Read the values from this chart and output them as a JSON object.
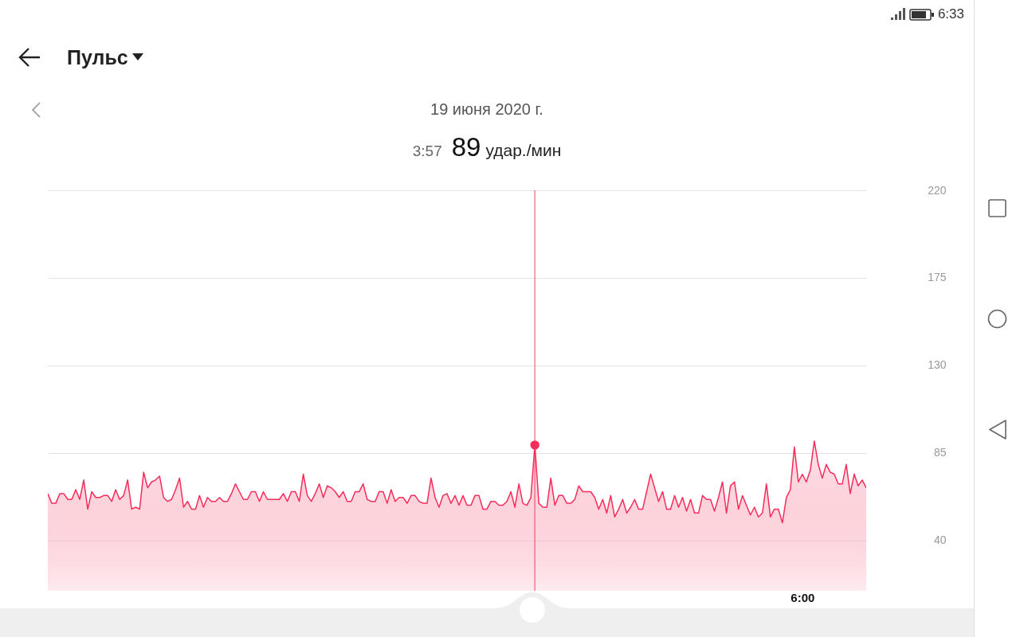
{
  "chart_data": {
    "type": "area",
    "title": "Пульс",
    "subtitle": "19 июня 2020 г.",
    "annotations": [
      "3:57",
      "89",
      "удар./мин",
      "6:33"
    ],
    "categories": [
      null,
      null,
      null,
      null,
      null,
      null,
      null,
      null,
      null,
      null,
      null,
      null,
      null,
      null,
      null,
      null,
      null,
      null,
      null,
      null,
      null,
      null,
      null,
      null,
      null,
      null,
      null,
      null,
      null,
      null,
      null,
      null,
      null,
      null,
      null,
      null,
      null,
      null,
      null,
      null,
      null,
      null,
      null,
      null,
      null,
      null,
      null,
      null,
      null,
      null,
      null,
      null,
      null,
      null,
      null,
      null,
      null,
      null,
      null,
      null,
      null,
      null,
      null,
      null,
      null,
      null,
      null,
      null,
      null,
      null,
      null,
      null,
      null,
      null,
      null,
      null,
      null,
      null,
      null,
      null,
      null,
      null,
      null,
      null,
      null,
      null,
      null,
      null,
      null,
      null,
      null,
      null,
      null,
      null,
      null,
      null,
      null,
      null,
      null,
      null,
      null,
      null,
      null,
      null,
      null,
      null,
      null,
      null,
      null,
      null,
      null,
      null,
      null,
      null,
      null,
      null,
      null,
      null,
      null,
      null,
      null,
      null,
      null,
      null,
      null,
      null,
      null,
      null,
      null,
      null,
      null,
      null,
      null,
      null,
      null,
      null,
      null,
      null,
      null,
      null,
      null,
      null,
      null,
      null,
      null,
      null,
      null,
      null,
      null,
      null,
      null,
      null,
      null,
      null,
      null,
      null,
      null,
      null,
      null,
      null,
      null,
      null,
      null,
      null,
      null,
      null,
      null,
      null,
      null,
      null,
      null,
      null,
      null,
      null,
      null,
      null,
      null,
      null,
      null,
      null,
      null,
      null,
      null,
      null,
      null,
      null,
      null,
      null,
      null,
      "6:00",
      null,
      null,
      null,
      null,
      null,
      null,
      null,
      null,
      null,
      null,
      null,
      null,
      null,
      null,
      null,
      null
    ],
    "ylim": [
      14,
      220
    ],
    "yticks": [
      40,
      85,
      130,
      175,
      220
    ],
    "grid": "y",
    "series": [
      {
        "color": "#f52c59",
        "values": [
          64,
          59,
          59,
          64,
          64,
          61,
          61,
          66,
          61,
          71,
          56,
          65,
          62,
          62,
          63,
          63,
          60,
          66,
          61,
          63,
          71,
          56,
          57,
          56,
          75,
          67,
          70,
          71,
          73,
          62,
          60,
          61,
          66,
          72,
          57,
          60,
          56,
          56,
          63,
          57,
          62,
          60,
          60,
          62,
          60,
          60,
          64,
          69,
          65,
          61,
          61,
          65,
          65,
          60,
          65,
          61,
          61,
          61,
          61,
          64,
          60,
          65,
          65,
          60,
          74,
          63,
          60,
          64,
          69,
          62,
          68,
          67,
          65,
          62,
          65,
          60,
          60,
          65,
          65,
          69,
          61,
          60,
          60,
          65,
          65,
          59,
          66,
          60,
          62,
          62,
          59,
          63,
          63,
          60,
          59,
          59,
          72,
          62,
          57,
          63,
          64,
          59,
          63,
          58,
          63,
          58,
          58,
          63,
          63,
          56,
          56,
          60,
          60,
          58,
          58,
          60,
          65,
          57,
          69,
          59,
          58,
          62,
          89,
          59,
          57,
          57,
          72,
          58,
          63,
          63,
          59,
          59,
          61,
          68,
          65,
          65,
          65,
          62,
          56,
          61,
          54,
          63,
          52,
          56,
          61,
          54,
          57,
          61,
          56,
          56,
          65,
          74,
          67,
          60,
          65,
          56,
          56,
          63,
          57,
          62,
          55,
          61,
          54,
          54,
          63,
          61,
          61,
          55,
          62,
          70,
          54,
          68,
          70,
          56,
          63,
          58,
          53,
          57,
          52,
          54,
          69,
          52,
          56,
          56,
          49,
          62,
          66,
          88,
          70,
          74,
          70,
          76,
          91,
          79,
          72,
          79,
          75,
          74,
          69,
          69,
          79,
          64,
          74,
          68,
          71,
          67
        ]
      },
      {
        "type": "scatter",
        "color": "#f52c59",
        "marker": "circle",
        "values": [
          null,
          null,
          null,
          null,
          null,
          null,
          null,
          null,
          null,
          null,
          null,
          null,
          null,
          null,
          null,
          null,
          null,
          null,
          null,
          null,
          null,
          null,
          null,
          null,
          null,
          null,
          null,
          null,
          null,
          null,
          null,
          null,
          null,
          null,
          null,
          null,
          null,
          null,
          null,
          null,
          null,
          null,
          null,
          null,
          null,
          null,
          null,
          null,
          null,
          null,
          null,
          null,
          null,
          null,
          null,
          null,
          null,
          null,
          null,
          null,
          null,
          null,
          null,
          null,
          null,
          null,
          null,
          null,
          null,
          null,
          null,
          null,
          null,
          null,
          null,
          null,
          null,
          null,
          null,
          null,
          null,
          null,
          null,
          null,
          null,
          null,
          null,
          null,
          null,
          null,
          null,
          null,
          null,
          null,
          null,
          null,
          null,
          null,
          null,
          null,
          null,
          null,
          null,
          null,
          null,
          null,
          null,
          null,
          null,
          null,
          null,
          null,
          null,
          null,
          null,
          null,
          null,
          null,
          null,
          null,
          null,
          null,
          89,
          null,
          null,
          null,
          null,
          null,
          null,
          null,
          null,
          null,
          null,
          null,
          null,
          null,
          null,
          null,
          null,
          null,
          null,
          null,
          null,
          null,
          null,
          null,
          null,
          null,
          null,
          null,
          null,
          null,
          null,
          null,
          null,
          null,
          null,
          null,
          null,
          null,
          null,
          null,
          null,
          null,
          null,
          null,
          null,
          null,
          null,
          null,
          null,
          null,
          null,
          null,
          null,
          null,
          null,
          null,
          null,
          null,
          null,
          null,
          null,
          null,
          null,
          null,
          null,
          null,
          null,
          null,
          null,
          null,
          null,
          null,
          null,
          null,
          null,
          null,
          null,
          null,
          null,
          null,
          null,
          null,
          null,
          null
        ]
      }
    ]
  }
}
